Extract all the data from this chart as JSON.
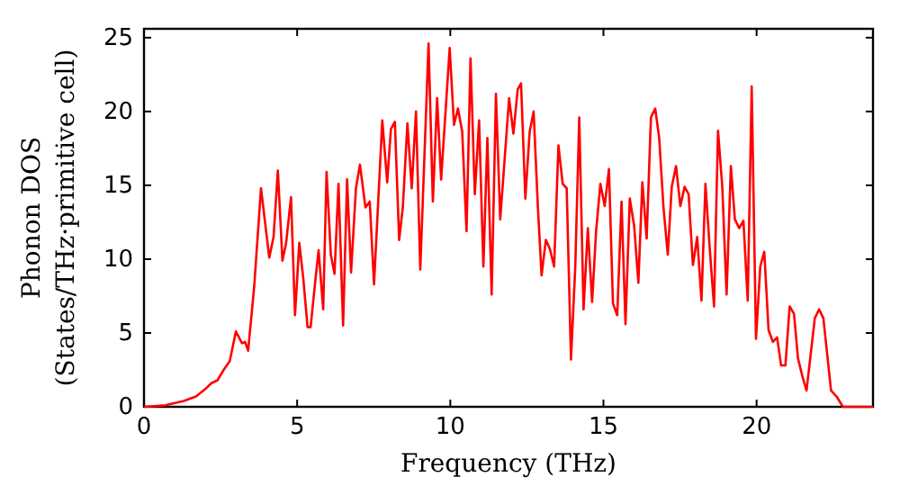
{
  "chart_data": {
    "type": "line",
    "xlabel": "Frequency (THz)",
    "ylabel": "Phonon DOS\n(States/THz·primitive cell)",
    "xlim": [
      0,
      23.8
    ],
    "ylim": [
      0,
      25.6
    ],
    "xticks": [
      0,
      5,
      10,
      15,
      20
    ],
    "yticks": [
      0,
      5,
      10,
      15,
      20,
      25
    ],
    "grid": false,
    "marker": "none",
    "line_style": "solid",
    "series": [
      {
        "color": "#ff0000",
        "x": [
          0,
          0.7,
          1.3,
          1.7,
          2.0,
          2.2,
          2.4,
          2.6,
          2.8,
          3.0,
          3.2,
          3.3,
          3.4,
          3.6,
          3.82,
          4.09,
          4.23,
          4.37,
          4.52,
          4.64,
          4.8,
          4.93,
          5.07,
          5.2,
          5.34,
          5.44,
          5.6,
          5.7,
          5.85,
          5.96,
          6.1,
          6.22,
          6.35,
          6.5,
          6.63,
          6.76,
          6.92,
          7.05,
          7.23,
          7.37,
          7.51,
          7.78,
          7.94,
          8.06,
          8.19,
          8.33,
          8.45,
          8.6,
          8.74,
          8.88,
          9.02,
          9.29,
          9.43,
          9.57,
          9.7,
          9.98,
          10.12,
          10.25,
          10.39,
          10.53,
          10.66,
          10.8,
          10.94,
          11.08,
          11.21,
          11.35,
          11.49,
          11.63,
          11.92,
          12.06,
          12.2,
          12.31,
          12.45,
          12.59,
          12.72,
          12.86,
          12.98,
          13.12,
          13.25,
          13.39,
          13.53,
          13.67,
          13.8,
          13.94,
          14.08,
          14.21,
          14.35,
          14.49,
          14.63,
          14.76,
          14.9,
          15.04,
          15.18,
          15.31,
          15.45,
          15.59,
          15.72,
          15.86,
          16.0,
          16.14,
          16.27,
          16.41,
          16.55,
          16.69,
          16.82,
          16.96,
          17.1,
          17.23,
          17.37,
          17.51,
          17.65,
          17.78,
          17.92,
          18.06,
          18.2,
          18.33,
          18.47,
          18.61,
          18.74,
          18.88,
          19.02,
          19.16,
          19.29,
          19.43,
          19.57,
          19.71,
          19.84,
          19.98,
          20.12,
          20.25,
          20.39,
          20.53,
          20.67,
          20.8,
          20.94,
          21.08,
          21.22,
          21.35,
          21.49,
          21.63,
          21.9,
          22.04,
          22.18,
          22.43,
          22.61,
          22.82,
          23.8
        ],
        "values": [
          0,
          0.1,
          0.4,
          0.7,
          1.2,
          1.6,
          1.8,
          2.5,
          3.1,
          5.1,
          4.3,
          4.4,
          3.8,
          8.2,
          14.8,
          10.1,
          11.5,
          16.0,
          9.9,
          11.1,
          14.2,
          6.2,
          11.1,
          8.7,
          5.4,
          5.4,
          8.7,
          10.6,
          6.6,
          15.9,
          10.3,
          9.0,
          15.1,
          5.5,
          15.4,
          9.1,
          14.8,
          16.4,
          13.5,
          13.9,
          8.3,
          19.4,
          15.2,
          18.8,
          19.3,
          11.3,
          13.5,
          19.2,
          14.8,
          20.0,
          9.3,
          24.6,
          13.9,
          20.9,
          15.4,
          24.3,
          19.1,
          20.2,
          18.6,
          11.9,
          23.6,
          14.4,
          19.4,
          9.5,
          18.2,
          7.6,
          21.2,
          12.7,
          20.9,
          18.5,
          21.5,
          21.9,
          14.1,
          18.6,
          20.0,
          13.5,
          8.9,
          11.3,
          10.7,
          9.5,
          17.7,
          15.1,
          14.8,
          3.2,
          9.5,
          19.6,
          6.6,
          12.1,
          7.1,
          11.9,
          15.1,
          13.6,
          16.1,
          7.0,
          6.2,
          13.9,
          5.6,
          14.1,
          12.3,
          8.4,
          15.2,
          11.4,
          19.6,
          20.2,
          18.2,
          13.5,
          10.3,
          14.9,
          16.3,
          13.6,
          14.9,
          14.4,
          9.6,
          11.5,
          7.2,
          15.1,
          10.7,
          6.8,
          18.7,
          14.9,
          7.6,
          16.3,
          12.7,
          12.1,
          12.6,
          7.2,
          21.7,
          4.6,
          9.5,
          10.5,
          5.2,
          4.4,
          4.7,
          2.8,
          2.8,
          6.8,
          6.3,
          3.3,
          2.1,
          1.1,
          6.0,
          6.6,
          6.0,
          1.1,
          0.7,
          0,
          0
        ]
      }
    ]
  }
}
